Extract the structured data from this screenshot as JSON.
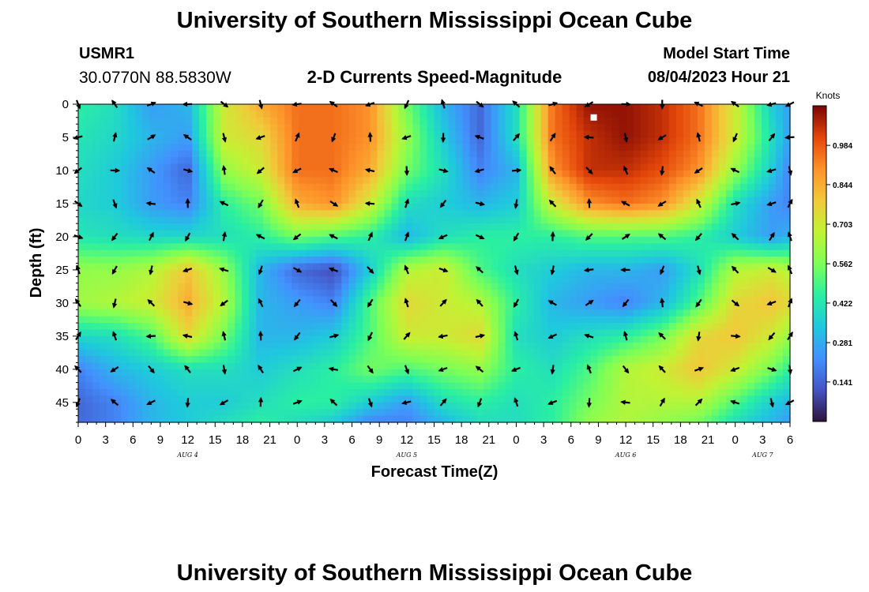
{
  "page": {
    "title": "University of Southern Mississippi Ocean Cube",
    "station_id": "USMR1",
    "station_coords": "30.0770N  88.5830W",
    "plot_name": "2-D Currents Speed-Magnitude",
    "model_start_label": "Model Start Time",
    "model_start_value": "08/04/2023 Hour 21",
    "footer_title": "University of Southern Mississippi Ocean Cube"
  },
  "chart_data": {
    "type": "heatmap",
    "title": "2-D Currents Speed-Magnitude",
    "xlabel": "Forecast Time(Z)",
    "ylabel": "Depth (ft)",
    "colorbar_label": "Knots",
    "xlim": [
      0,
      78
    ],
    "ylim": [
      48,
      0
    ],
    "clim": [
      0,
      1.125
    ],
    "x_ticks": [
      0,
      3,
      6,
      9,
      12,
      15,
      18,
      21,
      24,
      27,
      30,
      33,
      36,
      39,
      42,
      45,
      48,
      51,
      54,
      57,
      60,
      63,
      66,
      69,
      72,
      75,
      78
    ],
    "x_tick_labels": [
      "0",
      "3",
      "6",
      "9",
      "12",
      "15",
      "18",
      "21",
      "0",
      "3",
      "6",
      "9",
      "12",
      "15",
      "18",
      "21",
      "0",
      "3",
      "6",
      "9",
      "12",
      "15",
      "18",
      "21",
      "0",
      "3",
      "6"
    ],
    "y_ticks": [
      0,
      5,
      10,
      15,
      20,
      25,
      30,
      35,
      40,
      45
    ],
    "y_tick_labels": [
      "0",
      "5",
      "10",
      "15",
      "20",
      "25",
      "30",
      "35",
      "40",
      "45"
    ],
    "date_labels": [
      {
        "text": "AUG 4",
        "hour": 12
      },
      {
        "text": "AUG 5",
        "hour": 36
      },
      {
        "text": "AUG 6",
        "hour": 60
      },
      {
        "text": "AUG 7",
        "hour": 75
      }
    ],
    "colorbar_ticks": [
      0.141,
      0.281,
      0.422,
      0.562,
      0.703,
      0.844,
      0.984
    ],
    "colorbar_tick_labels": [
      "0.141",
      "0.281",
      "0.422",
      "0.562",
      "0.703",
      "0.844",
      "0.984"
    ],
    "marker": {
      "hour": 56.5,
      "depth": 2
    },
    "arrow_hours": [
      0,
      4,
      8,
      12,
      16,
      20,
      24,
      28,
      32,
      36,
      40,
      44,
      48,
      52,
      56,
      60,
      64,
      68,
      72,
      76,
      78
    ],
    "arrow_depths": [
      0,
      5,
      10,
      15,
      20,
      25,
      30,
      35,
      40,
      45
    ],
    "speed_grid_hours": [
      0,
      4,
      8,
      12,
      16,
      20,
      24,
      28,
      32,
      36,
      40,
      44,
      48,
      52,
      56,
      60,
      64,
      68,
      72,
      76,
      78
    ],
    "speed_grid_depths": [
      0,
      5,
      10,
      15,
      20,
      25,
      30,
      35,
      40,
      45,
      48
    ],
    "speed_grid": [
      [
        0.45,
        0.4,
        0.25,
        0.3,
        0.7,
        0.85,
        0.95,
        0.95,
        0.9,
        0.55,
        0.3,
        0.15,
        0.4,
        0.95,
        1.1,
        1.1,
        1.05,
        0.95,
        0.7,
        0.35,
        0.25
      ],
      [
        0.42,
        0.38,
        0.3,
        0.25,
        0.7,
        0.75,
        0.95,
        0.95,
        0.9,
        0.6,
        0.35,
        0.15,
        0.4,
        0.95,
        1.05,
        1.1,
        1.05,
        0.95,
        0.7,
        0.4,
        0.25
      ],
      [
        0.4,
        0.35,
        0.25,
        0.15,
        0.6,
        0.7,
        0.95,
        0.95,
        0.85,
        0.55,
        0.4,
        0.2,
        0.3,
        0.9,
        1.05,
        1.05,
        1.0,
        0.9,
        0.6,
        0.35,
        0.2
      ],
      [
        0.38,
        0.35,
        0.25,
        0.2,
        0.45,
        0.55,
        0.85,
        0.9,
        0.7,
        0.4,
        0.35,
        0.3,
        0.35,
        0.7,
        0.9,
        0.95,
        0.9,
        0.7,
        0.4,
        0.25,
        0.2
      ],
      [
        0.42,
        0.4,
        0.38,
        0.38,
        0.4,
        0.45,
        0.55,
        0.5,
        0.45,
        0.3,
        0.4,
        0.45,
        0.45,
        0.45,
        0.5,
        0.5,
        0.5,
        0.45,
        0.35,
        0.25,
        0.3
      ],
      [
        0.6,
        0.6,
        0.65,
        0.8,
        0.6,
        0.3,
        0.15,
        0.1,
        0.35,
        0.65,
        0.7,
        0.5,
        0.4,
        0.35,
        0.3,
        0.3,
        0.25,
        0.4,
        0.65,
        0.7,
        0.65
      ],
      [
        0.62,
        0.65,
        0.7,
        0.85,
        0.65,
        0.3,
        0.25,
        0.2,
        0.5,
        0.75,
        0.7,
        0.65,
        0.45,
        0.3,
        0.25,
        0.2,
        0.3,
        0.5,
        0.75,
        0.8,
        0.75
      ],
      [
        0.38,
        0.4,
        0.5,
        0.75,
        0.55,
        0.3,
        0.3,
        0.35,
        0.5,
        0.7,
        0.7,
        0.75,
        0.4,
        0.35,
        0.4,
        0.45,
        0.55,
        0.75,
        0.8,
        0.7,
        0.6
      ],
      [
        0.2,
        0.3,
        0.35,
        0.4,
        0.4,
        0.35,
        0.4,
        0.45,
        0.55,
        0.5,
        0.55,
        0.6,
        0.45,
        0.4,
        0.5,
        0.65,
        0.7,
        0.8,
        0.7,
        0.55,
        0.45
      ],
      [
        0.15,
        0.2,
        0.3,
        0.35,
        0.35,
        0.4,
        0.45,
        0.45,
        0.35,
        0.25,
        0.4,
        0.45,
        0.4,
        0.45,
        0.55,
        0.65,
        0.65,
        0.65,
        0.5,
        0.35,
        0.3
      ],
      [
        0.15,
        0.2,
        0.3,
        0.35,
        0.4,
        0.45,
        0.4,
        0.35,
        0.2,
        0.2,
        0.3,
        0.4,
        0.4,
        0.45,
        0.6,
        0.65,
        0.6,
        0.55,
        0.4,
        0.3,
        0.25
      ]
    ]
  }
}
